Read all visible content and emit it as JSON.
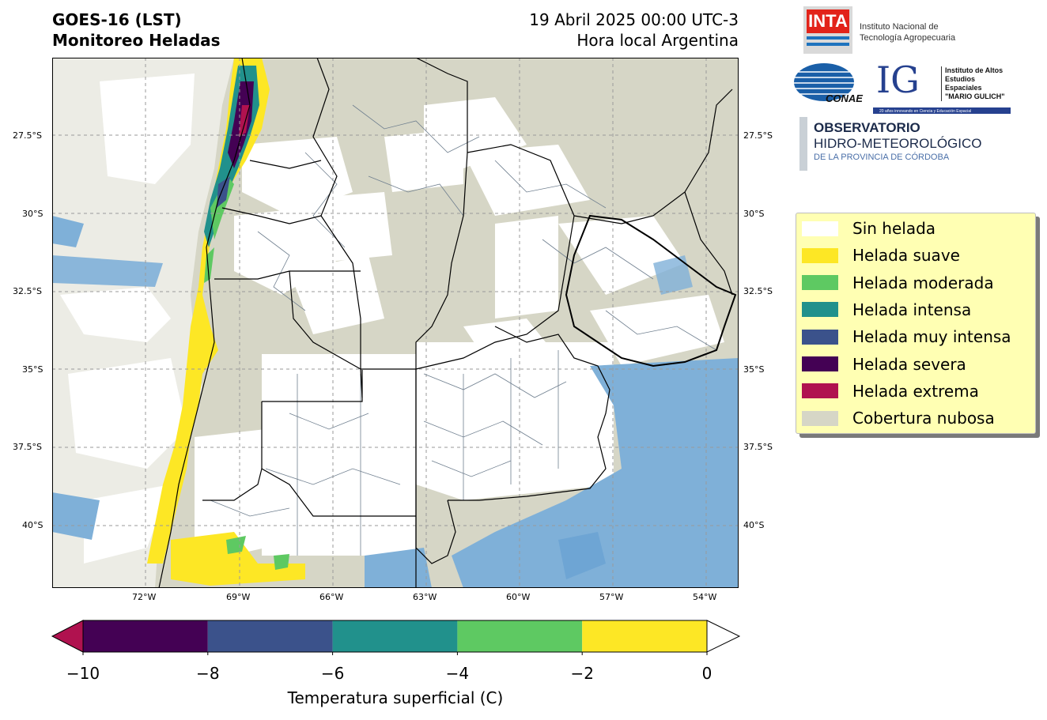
{
  "header": {
    "title_line1": "GOES-16 (LST)",
    "title_line2": "Monitoreo Heladas",
    "date_line1": "19 Abril 2025 00:00 UTC-3",
    "date_line2": "Hora local Argentina"
  },
  "map": {
    "lat_ticks": [
      "27.5°S",
      "30°S",
      "32.5°S",
      "35°S",
      "37.5°S",
      "40°S"
    ],
    "lon_ticks": [
      "72°W",
      "69°W",
      "66°W",
      "63°W",
      "60°W",
      "57°W",
      "54°W"
    ],
    "colors": {
      "background": "#d6d6c6",
      "clear": "#ffffff",
      "water": "#7fb0d8",
      "province_border": "#000000",
      "department_border": "#6f7f8f"
    }
  },
  "logos": {
    "inta_short": "INTA",
    "inta_line1": "Instituto Nacional de",
    "inta_line2": "Tecnología Agropecuaria",
    "conae": "CONAE",
    "ig_short": "IG",
    "ig_line1": "Instituto de Altos",
    "ig_line2": "Estudios Espaciales",
    "ig_line3": "\"MARIO GULICH\"",
    "ig_tagline": "20 años innovando en Ciencia y Educación Espacial",
    "obs_line1": "OBSERVATORIO",
    "obs_line2": "HIDRO-METEOROLÓGICO",
    "obs_line3": "DE LA PROVINCIA DE CÓRDOBA"
  },
  "legend": {
    "items": [
      {
        "label": "Sin helada",
        "color": "#ffffff"
      },
      {
        "label": "Helada suave",
        "color": "#fde725"
      },
      {
        "label": "Helada moderada",
        "color": "#5ec962"
      },
      {
        "label": "Helada intensa",
        "color": "#21918c"
      },
      {
        "label": "Helada muy intensa",
        "color": "#3b528b"
      },
      {
        "label": "Helada severa",
        "color": "#440154"
      },
      {
        "label": "Helada extrema",
        "color": "#b0124f"
      },
      {
        "label": "Cobertura nubosa",
        "color": "#d6d6c6"
      }
    ]
  },
  "colorbar": {
    "ticks": [
      "−10",
      "−8",
      "−6",
      "−4",
      "−2",
      "0"
    ],
    "colors": [
      "#440154",
      "#3b528b",
      "#21918c",
      "#5ec962",
      "#fde725"
    ],
    "under_color": "#b0124f",
    "over_color": "#ffffff",
    "label": "Temperatura superficial (C)"
  }
}
